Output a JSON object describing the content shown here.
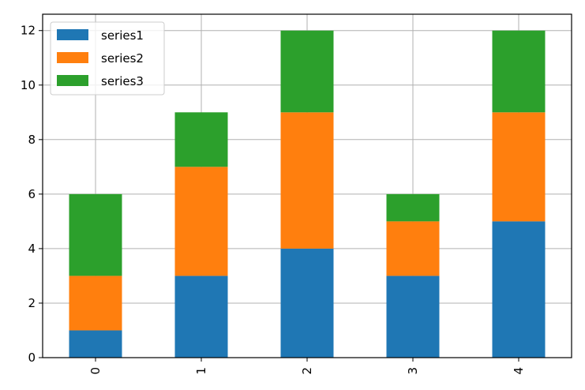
{
  "chart_data": {
    "type": "bar",
    "stacked": true,
    "categories": [
      "0",
      "1",
      "2",
      "3",
      "4"
    ],
    "series": [
      {
        "name": "series1",
        "color": "#1f77b4",
        "values": [
          1,
          3,
          4,
          3,
          5
        ]
      },
      {
        "name": "series2",
        "color": "#ff7f0e",
        "values": [
          2,
          4,
          5,
          2,
          4
        ]
      },
      {
        "name": "series3",
        "color": "#2ca02c",
        "values": [
          3,
          2,
          3,
          1,
          3
        ]
      }
    ],
    "ylim": [
      0,
      12.6
    ],
    "yticks": [
      0,
      2,
      4,
      6,
      8,
      10,
      12
    ],
    "grid": true,
    "legend_position": "top-left",
    "xtick_rotation": 90
  }
}
